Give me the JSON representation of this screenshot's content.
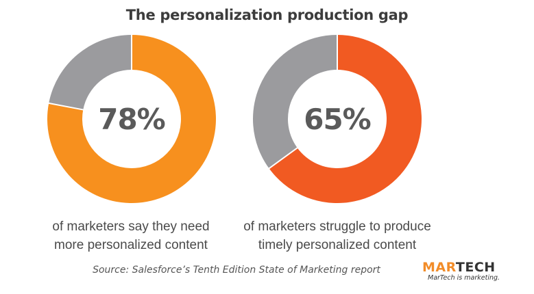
{
  "title": "The personalization production gap",
  "chart_data": [
    {
      "type": "pie",
      "variant": "donut",
      "center_label": "78%",
      "slices": [
        {
          "value": 78,
          "color": "#f7901e"
        },
        {
          "value": 22,
          "color": "#9b9b9e"
        }
      ],
      "caption": [
        "of marketers say they need",
        "more personalized content"
      ]
    },
    {
      "type": "pie",
      "variant": "donut",
      "center_label": "65%",
      "slices": [
        {
          "value": 65,
          "color": "#f15a22"
        },
        {
          "value": 35,
          "color": "#9b9b9e"
        }
      ],
      "caption": [
        "of marketers struggle to produce",
        "timely personalized content"
      ]
    }
  ],
  "source": "Source: Salesforce’s Tenth Edition State of Marketing report",
  "logo": {
    "mar": "MAR",
    "tech": "TECH",
    "tagline": "MarTech is marketing."
  }
}
